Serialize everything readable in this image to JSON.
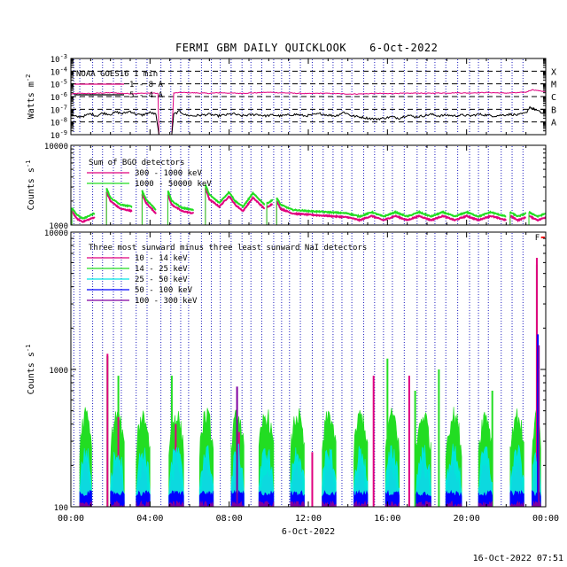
{
  "title": "FERMI GBM DAILY QUICKLOOK",
  "date": "6-Oct-2022",
  "footer_timestamp": "16-Oct-2022 07:51",
  "colors": {
    "magenta": "#e0007f",
    "green": "#22dd22",
    "cyan": "#00e5e5",
    "blue": "#0000ff",
    "purple": "#8000a0",
    "red": "#ff0000",
    "black": "#000000",
    "saa_line": "#2020c0"
  },
  "saa_vline_hours": [
    0.15,
    0.45,
    1.1,
    1.6,
    2.15,
    2.55,
    3.3,
    3.85,
    4.55,
    5.05,
    5.55,
    5.95,
    6.6,
    7.1,
    7.55,
    8.1,
    8.65,
    9.1,
    9.65,
    10.25,
    10.65,
    11.05,
    11.6,
    12.2,
    12.75,
    13.25,
    13.7,
    14.2,
    14.8,
    15.35,
    15.8,
    16.25,
    16.85,
    17.5,
    17.95,
    18.4,
    18.95,
    19.55,
    20.15,
    20.6,
    21.1,
    21.75,
    22.3,
    22.85
  ],
  "chart_data": [
    {
      "id": "goes",
      "type": "line",
      "legend_title": "NOAA GOES16 1 min",
      "ylabel": "Watts m",
      "ylabel_exp": "-2",
      "yscale": "log",
      "ylim": [
        1e-09,
        0.001
      ],
      "xlim": [
        0,
        24
      ],
      "yticks": [
        {
          "value": 0.001,
          "mant": "10",
          "exp": "-3"
        },
        {
          "value": 0.0001,
          "mant": "10",
          "exp": "-4"
        },
        {
          "value": 1e-05,
          "mant": "10",
          "exp": "-5"
        },
        {
          "value": 1e-06,
          "mant": "10",
          "exp": "-6"
        },
        {
          "value": 1e-07,
          "mant": "10",
          "exp": "-7"
        },
        {
          "value": 1e-08,
          "mant": "10",
          "exp": "-8"
        },
        {
          "value": 1e-09,
          "mant": "10",
          "exp": "-9"
        }
      ],
      "class_levels": [
        {
          "label": "X",
          "value": 0.0001
        },
        {
          "label": "M",
          "value": 1e-05
        },
        {
          "label": "C",
          "value": 1e-06
        },
        {
          "label": "B",
          "value": 1e-07
        },
        {
          "label": "A",
          "value": 1e-08
        }
      ],
      "series": [
        {
          "name": "1 - 8 A",
          "color": "#e0007f",
          "x": [
            0,
            0.5,
            1,
            1.5,
            2,
            2.5,
            3,
            3.5,
            4,
            4.4,
            4.45,
            5.1,
            5.2,
            5.6,
            6,
            6.5,
            7,
            7.5,
            8,
            8.5,
            9,
            9.5,
            10,
            10.5,
            11,
            11.5,
            12,
            12.5,
            13,
            13.5,
            14,
            14.5,
            15,
            15.5,
            16,
            16.5,
            17,
            17.5,
            18,
            18.5,
            19,
            19.5,
            20,
            20.5,
            21,
            21.5,
            22,
            22.5,
            23,
            23.3,
            23.7,
            24
          ],
          "y": [
            1.6e-06,
            1.8e-06,
            1.7e-06,
            1.9e-06,
            2e-06,
            1.8e-06,
            1.7e-06,
            1.8e-06,
            1.9e-06,
            1.8e-06,
            1e-09,
            1e-09,
            1.9e-06,
            2.1e-06,
            2e-06,
            1.9e-06,
            1.8e-06,
            2e-06,
            1.9e-06,
            1.8e-06,
            1.9e-06,
            2e-06,
            2.2e-06,
            2e-06,
            1.9e-06,
            1.8e-06,
            1.7e-06,
            1.8e-06,
            1.8e-06,
            1.7e-06,
            1.6e-06,
            1.6e-06,
            1.7e-06,
            1.8e-06,
            1.7e-06,
            1.8e-06,
            1.8e-06,
            1.9e-06,
            1.8e-06,
            1.9e-06,
            1.9e-06,
            2e-06,
            1.9e-06,
            2e-06,
            2.1e-06,
            2e-06,
            1.9e-06,
            2e-06,
            2.2e-06,
            3.5e-06,
            2.8e-06,
            2.5e-06
          ]
        },
        {
          "name": "5 - 4 A",
          "color": "#000000",
          "x": [
            0,
            0.3,
            0.7,
            1,
            1.3,
            1.6,
            2,
            2.3,
            2.6,
            3,
            3.3,
            3.6,
            4,
            4.3,
            4.45,
            5.1,
            5.2,
            5.5,
            5.8,
            6.2,
            6.6,
            7,
            7.4,
            7.8,
            8.2,
            8.6,
            9,
            9.4,
            9.8,
            10.2,
            10.6,
            11,
            11.4,
            11.8,
            12.2,
            12.6,
            13,
            13.4,
            13.8,
            14.2,
            14.6,
            15,
            15.4,
            15.8,
            16.2,
            16.6,
            17,
            17.4,
            17.8,
            18.2,
            18.6,
            19,
            19.4,
            19.8,
            20.2,
            20.6,
            21,
            21.4,
            21.8,
            22.2,
            22.6,
            23,
            23.2,
            23.5,
            23.8,
            24
          ],
          "y": [
            3.5e-08,
            2.5e-08,
            3e-08,
            4.5e-08,
            3e-08,
            5e-08,
            4e-08,
            6e-08,
            4.5e-08,
            7e-08,
            4e-08,
            3.5e-08,
            5.5e-08,
            4e-08,
            1e-09,
            1e-09,
            4e-08,
            7e-08,
            3.5e-08,
            3e-08,
            3.5e-08,
            4e-08,
            3e-08,
            3.5e-08,
            4.5e-08,
            3e-08,
            3.5e-08,
            4e-08,
            3e-08,
            3.5e-08,
            3e-08,
            3.5e-08,
            4e-08,
            3e-08,
            3.5e-08,
            4.5e-08,
            3.5e-08,
            3e-08,
            6e-08,
            3e-08,
            2.5e-08,
            2e-08,
            1.7e-08,
            2e-08,
            2.5e-08,
            2e-08,
            3.5e-08,
            2.5e-08,
            3e-08,
            4e-08,
            3e-08,
            3.5e-08,
            3e-08,
            3.5e-08,
            3e-08,
            4e-08,
            3.5e-08,
            3e-08,
            3.5e-08,
            4e-08,
            3.5e-08,
            5e-08,
            1.5e-07,
            9e-08,
            5e-08,
            5.5e-08
          ]
        }
      ]
    },
    {
      "id": "bgo",
      "type": "line",
      "legend_title": "Sum of BGO detectors",
      "ylabel": "Counts s",
      "ylabel_exp": "-1",
      "yscale": "log",
      "ylim": [
        1000,
        10000
      ],
      "xlim": [
        0,
        24
      ],
      "yticks": [
        {
          "value": 10000,
          "label": "10000"
        },
        {
          "value": 1000,
          "label": "1000"
        }
      ],
      "orbit_segments": [
        [
          0.05,
          1.2
        ],
        [
          1.8,
          3.1
        ],
        [
          3.6,
          4.3
        ],
        [
          4.9,
          6.2
        ],
        [
          6.8,
          9.8
        ],
        [
          9.9,
          10.2
        ],
        [
          10.4,
          22.0
        ],
        [
          22.2,
          23.0
        ],
        [
          23.15,
          24
        ]
      ],
      "series": [
        {
          "name": "300 - 1000 keV",
          "color": "#e0007f",
          "x": [
            0.05,
            0.3,
            0.6,
            1.2,
            1.8,
            2.0,
            2.5,
            3.1,
            3.6,
            3.8,
            4.3,
            4.9,
            5.1,
            5.6,
            6.2,
            6.8,
            7.0,
            7.5,
            8.0,
            8.3,
            8.7,
            9.2,
            9.8,
            10.4,
            10.6,
            11.2,
            12.0,
            13.0,
            14.0,
            14.6,
            15.2,
            15.8,
            16.4,
            17.0,
            17.6,
            18.2,
            18.8,
            19.4,
            20.0,
            20.6,
            21.2,
            22.0,
            22.2,
            22.6,
            23.0,
            23.15,
            23.6,
            24
          ],
          "y": [
            1500,
            1200,
            1100,
            1250,
            2600,
            2000,
            1600,
            1500,
            2400,
            1900,
            1400,
            2400,
            1800,
            1500,
            1400,
            2900,
            2100,
            1700,
            2300,
            1800,
            1500,
            2200,
            1600,
            2000,
            1600,
            1400,
            1350,
            1300,
            1250,
            1150,
            1300,
            1150,
            1300,
            1150,
            1300,
            1150,
            1300,
            1150,
            1300,
            1150,
            1300,
            1150,
            1300,
            1150,
            1250,
            1300,
            1150,
            1250
          ]
        },
        {
          "name": "1000 - 50000 keV",
          "color": "#22dd22",
          "x": [
            0.05,
            0.3,
            0.6,
            1.2,
            1.8,
            2.0,
            2.5,
            3.1,
            3.6,
            3.8,
            4.3,
            4.9,
            5.1,
            5.6,
            6.2,
            6.8,
            7.0,
            7.5,
            8.0,
            8.3,
            8.7,
            9.2,
            9.8,
            10.4,
            10.6,
            11.2,
            12.0,
            13.0,
            14.0,
            14.6,
            15.2,
            15.8,
            16.4,
            17.0,
            17.6,
            18.2,
            18.8,
            19.4,
            20.0,
            20.6,
            21.2,
            22.0,
            22.2,
            22.6,
            23.0,
            23.15,
            23.6,
            24
          ],
          "y": [
            1650,
            1350,
            1200,
            1400,
            2900,
            2200,
            1800,
            1700,
            2700,
            2100,
            1550,
            2700,
            2000,
            1650,
            1550,
            3200,
            2400,
            1900,
            2600,
            2000,
            1700,
            2500,
            1800,
            2200,
            1800,
            1550,
            1500,
            1450,
            1400,
            1280,
            1450,
            1280,
            1450,
            1280,
            1450,
            1280,
            1450,
            1280,
            1450,
            1280,
            1450,
            1280,
            1450,
            1280,
            1400,
            1450,
            1280,
            1400
          ]
        }
      ]
    },
    {
      "id": "nai",
      "type": "line",
      "legend_title": "Three most sunward minus three least sunward NaI detectors",
      "ylabel": "Counts s",
      "ylabel_exp": "-1",
      "yscale": "log",
      "ylim": [
        100,
        10000
      ],
      "xlim": [
        0,
        24
      ],
      "yticks": [
        {
          "value": 10000,
          "label": "10000"
        },
        {
          "value": 1000,
          "label": "1000"
        },
        {
          "value": 100,
          "label": "100"
        }
      ],
      "xticks": [
        {
          "value": 0,
          "label": "00:00"
        },
        {
          "value": 4,
          "label": "04:00"
        },
        {
          "value": 8,
          "label": "08:00"
        },
        {
          "value": 12,
          "label": "12:00"
        },
        {
          "value": 16,
          "label": "16:00"
        },
        {
          "value": 20,
          "label": "20:00"
        },
        {
          "value": 24,
          "label": "00:00"
        }
      ],
      "xlabel": "6-Oct-2022",
      "flare_marker": {
        "label": "F",
        "x": 23.45,
        "x_end": 23.95
      },
      "orbit_segments": [
        [
          0.45,
          1.05
        ],
        [
          2.0,
          2.7
        ],
        [
          3.3,
          4.0
        ],
        [
          4.95,
          5.7
        ],
        [
          6.5,
          7.2
        ],
        [
          8.1,
          8.75
        ],
        [
          9.5,
          10.25
        ],
        [
          11.1,
          11.8
        ],
        [
          12.7,
          13.4
        ],
        [
          14.3,
          15.0
        ],
        [
          15.9,
          16.6
        ],
        [
          17.45,
          18.2
        ],
        [
          18.95,
          19.75
        ],
        [
          20.6,
          21.3
        ],
        [
          22.2,
          22.9
        ],
        [
          23.3,
          23.75
        ]
      ],
      "series": [
        {
          "name": "10 - 14 keV",
          "color": "#e0007f",
          "level": 190,
          "spikes": [
            [
              1.85,
              1300
            ],
            [
              2.4,
              450
            ],
            [
              5.3,
              400
            ],
            [
              8.5,
              350
            ],
            [
              12.2,
              250
            ],
            [
              15.3,
              900
            ],
            [
              17.1,
              900
            ],
            [
              23.55,
              6500
            ]
          ]
        },
        {
          "name": "14 - 25 keV",
          "color": "#22dd22",
          "level": 460,
          "spikes": [
            [
              1.85,
              1250
            ],
            [
              2.4,
              900
            ],
            [
              5.1,
              900
            ],
            [
              16.0,
              1200
            ],
            [
              17.4,
              700
            ],
            [
              18.6,
              1000
            ],
            [
              21.3,
              700
            ],
            [
              23.55,
              5800
            ]
          ]
        },
        {
          "name": "25 - 50 keV",
          "color": "#00e5e5",
          "level": 250,
          "spikes": [
            [
              23.6,
              800
            ]
          ]
        },
        {
          "name": "50 - 100 keV",
          "color": "#0000ff",
          "level": 125,
          "spikes": [
            [
              23.6,
              1800
            ]
          ]
        },
        {
          "name": "100 - 300 keV",
          "color": "#8000a0",
          "level": 105,
          "spikes": [
            [
              8.4,
              750
            ],
            [
              23.65,
              1500
            ]
          ]
        }
      ]
    }
  ]
}
